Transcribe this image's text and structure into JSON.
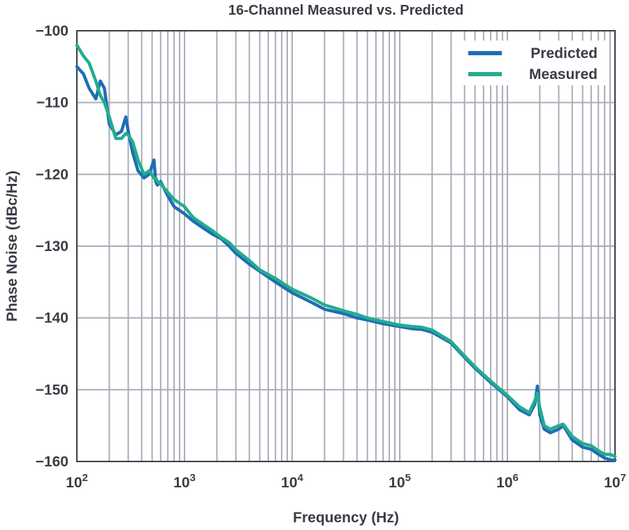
{
  "chart_data": {
    "type": "line",
    "title": "16-Channel Measured vs. Predicted",
    "xlabel": "Frequency (Hz)",
    "ylabel": "Phase Noise (dBc/Hz)",
    "x_scale": "log",
    "xlim": [
      100,
      10000000
    ],
    "ylim": [
      -160,
      -100
    ],
    "x_ticks": [
      {
        "value": 100,
        "base": "10",
        "exp": "2"
      },
      {
        "value": 1000,
        "base": "10",
        "exp": "3"
      },
      {
        "value": 10000,
        "base": "10",
        "exp": "4"
      },
      {
        "value": 100000,
        "base": "10",
        "exp": "5"
      },
      {
        "value": 1000000,
        "base": "10",
        "exp": "6"
      },
      {
        "value": 10000000,
        "base": "10",
        "exp": "7"
      }
    ],
    "y_ticks": [
      {
        "value": -100,
        "label": "−100"
      },
      {
        "value": -110,
        "label": "−110"
      },
      {
        "value": -120,
        "label": "−120"
      },
      {
        "value": -130,
        "label": "−130"
      },
      {
        "value": -140,
        "label": "−140"
      },
      {
        "value": -150,
        "label": "−150"
      },
      {
        "value": -160,
        "label": "−160"
      }
    ],
    "grid": true,
    "legend_position": "top-right",
    "series": [
      {
        "name": "Predicted",
        "color": "#1f6db5",
        "x": [
          100,
          115,
          130,
          150,
          165,
          180,
          200,
          230,
          260,
          285,
          300,
          330,
          370,
          420,
          470,
          520,
          540,
          560,
          600,
          700,
          800,
          1000,
          1200,
          1500,
          1800,
          2200,
          2600,
          3000,
          4000,
          5000,
          7000,
          10000,
          15000,
          20000,
          30000,
          40000,
          50000,
          70000,
          100000,
          130000,
          160000,
          200000,
          300000,
          400000,
          500000,
          700000,
          1000000,
          1300000,
          1600000,
          1800000,
          1900000,
          2000000,
          2200000,
          2500000,
          3000000,
          3300000,
          4000000,
          5000000,
          6000000,
          7000000,
          8000000,
          9000000,
          10000000
        ],
        "y": [
          -105,
          -106,
          -108,
          -109.5,
          -107,
          -108,
          -113,
          -114.5,
          -114,
          -112,
          -114,
          -117,
          -119.5,
          -120.5,
          -120,
          -118,
          -121,
          -121.5,
          -121,
          -123,
          -124.5,
          -125.5,
          -126.5,
          -127.5,
          -128.3,
          -129,
          -130,
          -131,
          -132.5,
          -133.5,
          -135,
          -136.5,
          -137.8,
          -138.8,
          -139.4,
          -140,
          -140.3,
          -140.8,
          -141.2,
          -141.5,
          -141.6,
          -142,
          -143.5,
          -145.5,
          -147,
          -149,
          -151,
          -152.8,
          -153.5,
          -152,
          -149.5,
          -153.5,
          -155.5,
          -156,
          -155.5,
          -155,
          -157,
          -158,
          -158.3,
          -159,
          -159.5,
          -159.8,
          -159.8
        ]
      },
      {
        "name": "Measured",
        "color": "#22ad8e",
        "x": [
          100,
          115,
          130,
          150,
          165,
          180,
          200,
          230,
          260,
          285,
          300,
          330,
          370,
          420,
          470,
          520,
          540,
          560,
          600,
          700,
          800,
          1000,
          1200,
          1500,
          1800,
          2200,
          2600,
          3000,
          4000,
          5000,
          7000,
          10000,
          15000,
          20000,
          30000,
          40000,
          50000,
          70000,
          100000,
          130000,
          160000,
          200000,
          300000,
          400000,
          500000,
          700000,
          1000000,
          1300000,
          1600000,
          1800000,
          1900000,
          2000000,
          2200000,
          2500000,
          3000000,
          3300000,
          4000000,
          5000000,
          6000000,
          7000000,
          8000000,
          9000000,
          10000000
        ],
        "y": [
          -102,
          -103.5,
          -104.5,
          -107,
          -109,
          -110,
          -112,
          -115,
          -115,
          -114.3,
          -114.5,
          -115.5,
          -118,
          -120,
          -119.5,
          -120.5,
          -120.5,
          -121,
          -121.3,
          -122.5,
          -123.5,
          -124.5,
          -126,
          -127,
          -127.8,
          -128.8,
          -129.5,
          -130.5,
          -132,
          -133.3,
          -134.5,
          -136,
          -137.2,
          -138.2,
          -139,
          -139.5,
          -140,
          -140.5,
          -141,
          -141.2,
          -141.3,
          -141.7,
          -143.3,
          -145.3,
          -146.8,
          -148.8,
          -150.8,
          -152.4,
          -153.2,
          -151.5,
          -150.5,
          -152.5,
          -155,
          -155.5,
          -155,
          -154.8,
          -156.5,
          -157.5,
          -157.8,
          -158.5,
          -159,
          -159,
          -159.3
        ]
      }
    ]
  }
}
